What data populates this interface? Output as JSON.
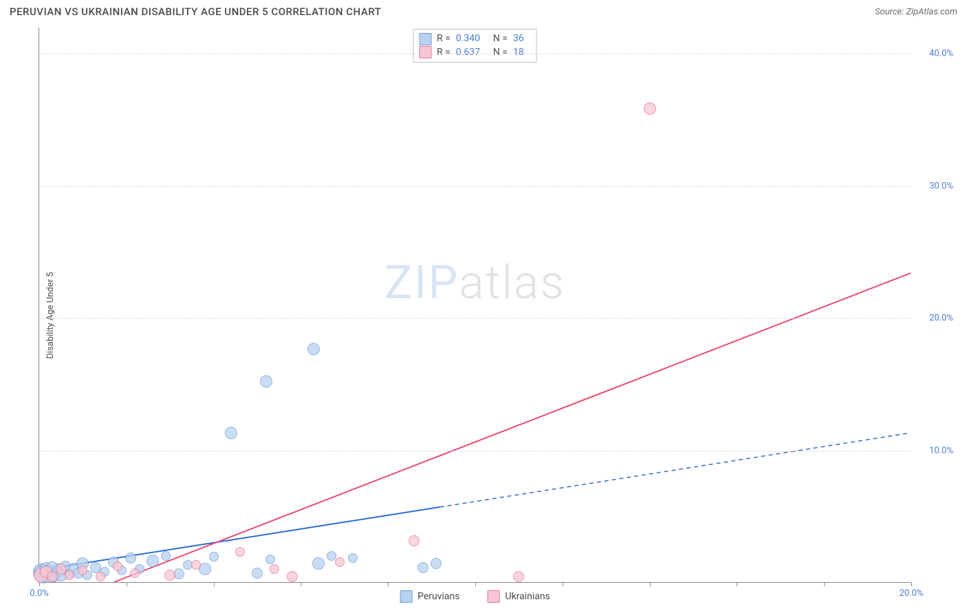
{
  "title": "PERUVIAN VS UKRAINIAN DISABILITY AGE UNDER 5 CORRELATION CHART",
  "source_prefix": "Source: ",
  "source_name": "ZipAtlas.com",
  "ylabel": "Disability Age Under 5",
  "watermark": {
    "part1": "ZIP",
    "part2": "atlas"
  },
  "chart": {
    "type": "scatter-with-regression",
    "background": "#ffffff",
    "grid_color": "#d8d8d8",
    "axis_color": "#888888",
    "x": {
      "min": 0,
      "max": 20,
      "ticks": [
        0,
        2,
        4,
        6,
        8,
        10,
        12,
        14,
        16,
        18,
        20
      ],
      "labels": {
        "0": "0.0%",
        "20": "20.0%"
      }
    },
    "y": {
      "min": 0,
      "max": 42,
      "gridlines": [
        10,
        20,
        30,
        40
      ],
      "labels": {
        "10": "10.0%",
        "20": "20.0%",
        "30": "30.0%",
        "40": "40.0%"
      }
    },
    "series": [
      {
        "id": "peruvians",
        "name": "Peruvians",
        "fill": "#b9d1f0",
        "stroke": "#6f9ed9",
        "r_label": "R =",
        "r_value": "0.340",
        "n_label": "N =",
        "n_value": "36",
        "marker_radius_range": [
          6,
          14
        ],
        "line": {
          "color": "#2e6bd0",
          "solid_until_x": 9.2,
          "y_at_x0": 0.9,
          "y_at_end": 11.3,
          "width": 2
        },
        "points": [
          [
            0.05,
            0.8,
            12
          ],
          [
            0.1,
            0.6,
            14
          ],
          [
            0.15,
            1.0,
            10
          ],
          [
            0.2,
            0.6,
            13
          ],
          [
            0.3,
            1.1,
            9
          ],
          [
            0.35,
            0.4,
            8
          ],
          [
            0.45,
            0.9,
            10
          ],
          [
            0.5,
            0.5,
            9
          ],
          [
            0.6,
            1.2,
            8
          ],
          [
            0.7,
            0.6,
            7
          ],
          [
            0.8,
            1.0,
            9
          ],
          [
            0.9,
            0.7,
            8
          ],
          [
            1.0,
            1.4,
            9
          ],
          [
            1.1,
            0.5,
            7
          ],
          [
            1.3,
            1.1,
            8
          ],
          [
            1.5,
            0.8,
            7
          ],
          [
            1.7,
            1.5,
            8
          ],
          [
            1.9,
            0.9,
            7
          ],
          [
            2.1,
            1.8,
            8
          ],
          [
            2.3,
            1.0,
            7
          ],
          [
            2.6,
            1.6,
            9
          ],
          [
            2.9,
            2.0,
            7
          ],
          [
            3.2,
            0.6,
            8
          ],
          [
            3.4,
            1.3,
            7
          ],
          [
            3.8,
            1.0,
            9
          ],
          [
            4.0,
            1.9,
            7
          ],
          [
            4.4,
            11.3,
            9
          ],
          [
            5.2,
            15.2,
            9
          ],
          [
            5.0,
            0.7,
            8
          ],
          [
            5.3,
            1.7,
            7
          ],
          [
            6.3,
            17.6,
            9
          ],
          [
            6.4,
            1.4,
            9
          ],
          [
            6.7,
            2.0,
            7
          ],
          [
            8.8,
            1.1,
            8
          ],
          [
            9.1,
            1.4,
            8
          ],
          [
            7.2,
            1.8,
            7
          ]
        ]
      },
      {
        "id": "ukrainians",
        "name": "Ukrainians",
        "fill": "#f6c6d4",
        "stroke": "#e8778f",
        "r_label": "R =",
        "r_value": "0.637",
        "n_label": "N =",
        "n_value": "18",
        "marker_radius_range": [
          6,
          12
        ],
        "line": {
          "color": "#e94b73",
          "solid_until_x": 20,
          "y_at_x0": -2.2,
          "y_at_end": 23.4,
          "width": 2
        },
        "points": [
          [
            0.05,
            0.5,
            11
          ],
          [
            0.15,
            0.8,
            9
          ],
          [
            0.3,
            0.4,
            8
          ],
          [
            0.5,
            1.0,
            8
          ],
          [
            0.7,
            0.5,
            7
          ],
          [
            1.0,
            0.9,
            7
          ],
          [
            1.4,
            0.4,
            7
          ],
          [
            1.8,
            1.2,
            7
          ],
          [
            2.2,
            0.7,
            7
          ],
          [
            3.0,
            0.5,
            8
          ],
          [
            3.6,
            1.3,
            7
          ],
          [
            4.6,
            2.3,
            7
          ],
          [
            5.4,
            1.0,
            7
          ],
          [
            5.8,
            0.4,
            8
          ],
          [
            6.9,
            1.5,
            7
          ],
          [
            8.6,
            3.1,
            8
          ],
          [
            11.0,
            0.4,
            8
          ],
          [
            14.0,
            35.8,
            9
          ]
        ]
      }
    ]
  }
}
